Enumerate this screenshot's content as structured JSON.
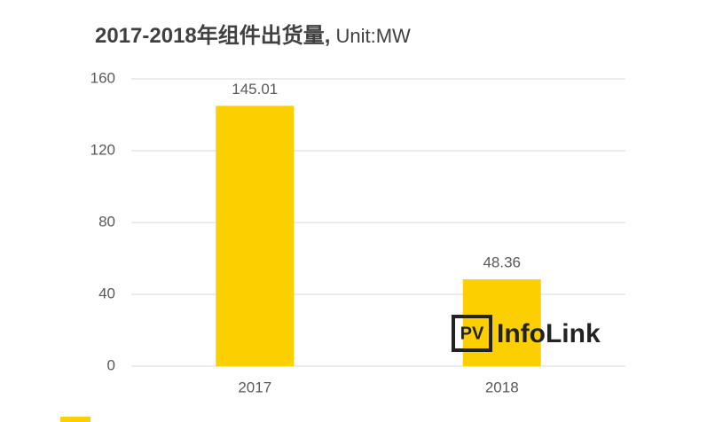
{
  "chart_data": {
    "type": "bar",
    "title": "2017-2018年组件出货量,",
    "subtitle": "Unit:MW",
    "categories": [
      "2017",
      "2018"
    ],
    "values": [
      145.01,
      48.36
    ],
    "color": "#FCD000",
    "ylim": [
      0,
      160
    ],
    "yticks": [
      0,
      40,
      80,
      120,
      160
    ],
    "grid": true,
    "watermark": {
      "badge": "PV",
      "text": "InfoLink"
    }
  }
}
